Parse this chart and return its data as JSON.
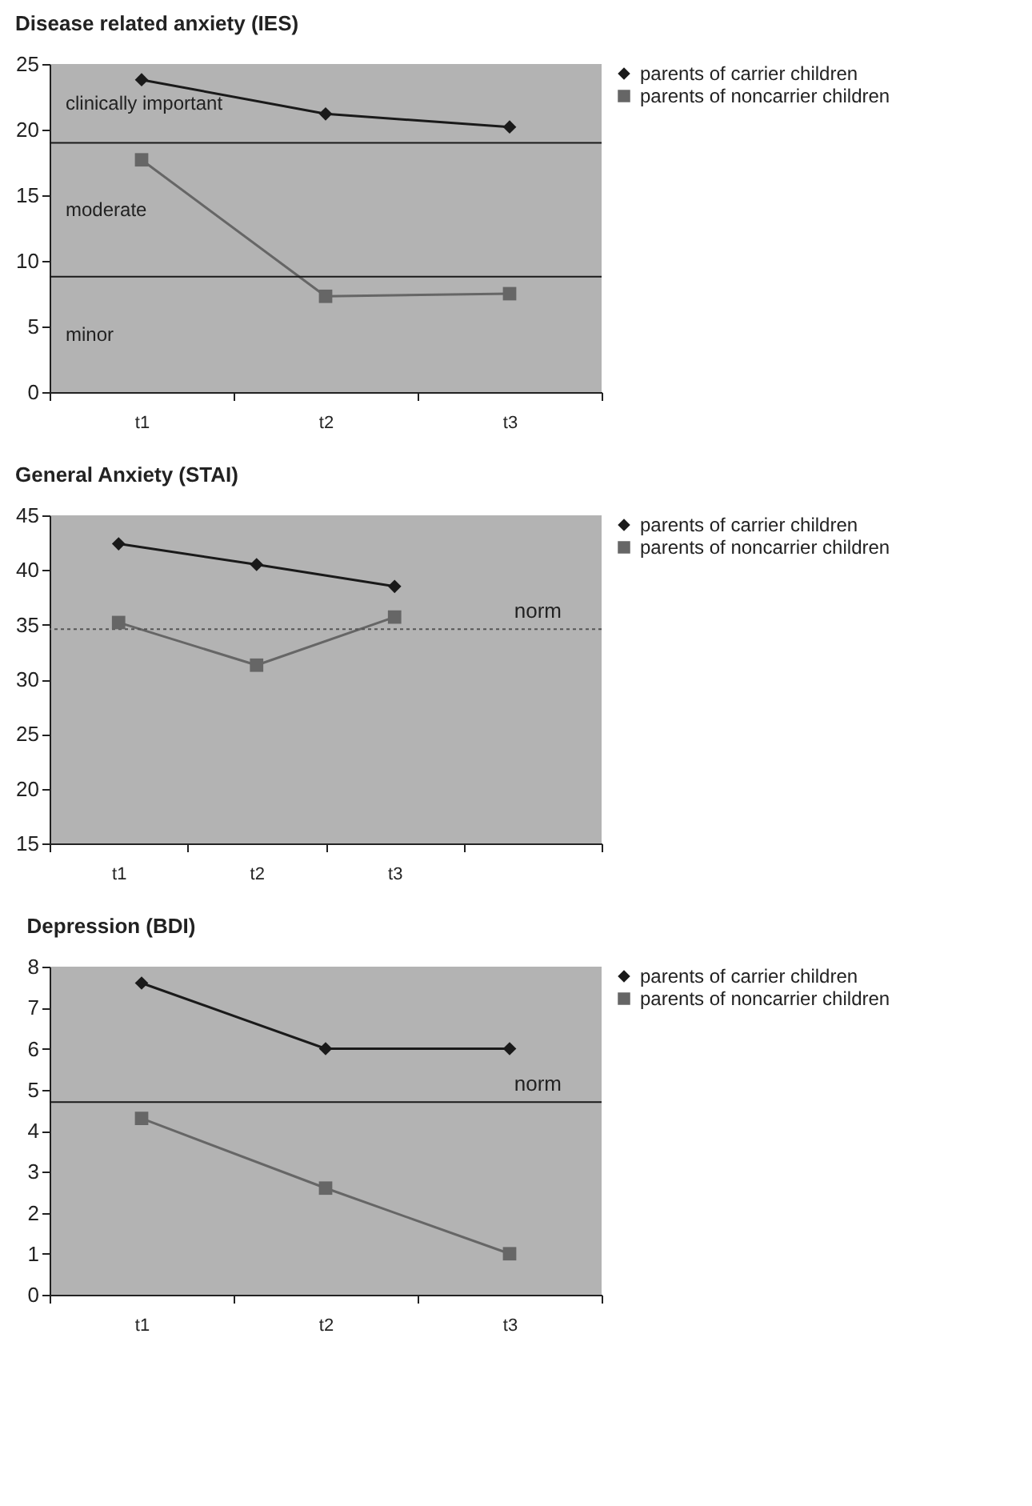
{
  "chart_data": [
    {
      "type": "line",
      "title": "Disease related anxiety (IES)",
      "categories": [
        "t1",
        "t2",
        "t3"
      ],
      "series": [
        {
          "name": "parents of carrier children",
          "color": "#1a1a1a",
          "marker": "diamond",
          "values": [
            23.8,
            21.2,
            20.2
          ]
        },
        {
          "name": "parents of noncarrier children",
          "color": "#666666",
          "marker": "square",
          "values": [
            17.7,
            7.3,
            7.5
          ]
        }
      ],
      "ylim": [
        0,
        25
      ],
      "yticks": [
        0,
        5,
        10,
        15,
        20,
        25
      ],
      "legend": "right",
      "ref_lines": [
        {
          "axis": "y",
          "value": 19,
          "label": null,
          "color": "#1a1a1a",
          "line_style": "solid"
        },
        {
          "axis": "y",
          "value": 8.8,
          "label": null,
          "color": "#1a1a1a",
          "line_style": "solid"
        }
      ],
      "annotations": [
        "clinically important",
        "moderate",
        "minor"
      ]
    },
    {
      "type": "line",
      "title": "General Anxiety (STAI)",
      "categories": [
        "t1",
        "t2",
        "t3",
        null
      ],
      "series": [
        {
          "name": "parents of carrier children",
          "color": "#1a1a1a",
          "marker": "diamond",
          "values": [
            42.4,
            40.5,
            38.5,
            null
          ]
        },
        {
          "name": "parents of noncarrier children",
          "color": "#666666",
          "marker": "square",
          "values": [
            35.2,
            31.3,
            35.7,
            null
          ]
        }
      ],
      "ylim": [
        15,
        45
      ],
      "yticks": [
        15,
        20,
        25,
        30,
        35,
        40,
        45
      ],
      "legend": "right",
      "ref_lines": [
        {
          "axis": "y",
          "value": 34.6,
          "label": "norm",
          "color": "#555555",
          "line_style": "dotted"
        }
      ]
    },
    {
      "type": "line",
      "title": "Depression (BDI)",
      "categories": [
        "t1",
        "t2",
        "t3"
      ],
      "series": [
        {
          "name": "parents of carrier children",
          "color": "#1a1a1a",
          "marker": "diamond",
          "values": [
            7.6,
            6.0,
            6.0
          ]
        },
        {
          "name": "parents of noncarrier children",
          "color": "#666666",
          "marker": "square",
          "values": [
            4.3,
            2.6,
            1.0
          ]
        }
      ],
      "ylim": [
        0,
        8
      ],
      "yticks": [
        0,
        1,
        2,
        3,
        4,
        5,
        6,
        7,
        8
      ],
      "legend": "right",
      "ref_lines": [
        {
          "axis": "y",
          "value": 4.7,
          "label": "norm",
          "color": "#1a1a1a",
          "line_style": "solid"
        }
      ]
    }
  ]
}
